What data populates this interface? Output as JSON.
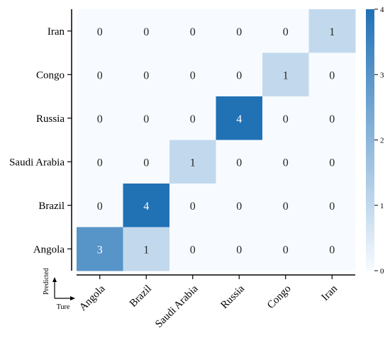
{
  "chart_data": {
    "type": "heatmap",
    "x_categories": [
      "Angola",
      "Brazil",
      "Saudi Arabia",
      "Russia",
      "Congo",
      "Iran"
    ],
    "y_categories": [
      "Iran",
      "Congo",
      "Russia",
      "Saudi Arabia",
      "Brazil",
      "Angola"
    ],
    "values": [
      [
        0,
        0,
        0,
        0,
        0,
        1
      ],
      [
        0,
        0,
        0,
        0,
        1,
        0
      ],
      [
        0,
        0,
        0,
        4,
        0,
        0
      ],
      [
        0,
        0,
        1,
        0,
        0,
        0
      ],
      [
        0,
        4,
        0,
        0,
        0,
        0
      ],
      [
        3,
        1,
        0,
        0,
        0,
        0
      ]
    ],
    "xlabel": "Ture",
    "ylabel": "Predicted",
    "colorbar": {
      "range": [
        0,
        4
      ],
      "ticks": [
        0,
        1,
        2,
        3,
        4
      ],
      "color_low": "#f7fbff",
      "color_high": "#2171b5"
    }
  }
}
